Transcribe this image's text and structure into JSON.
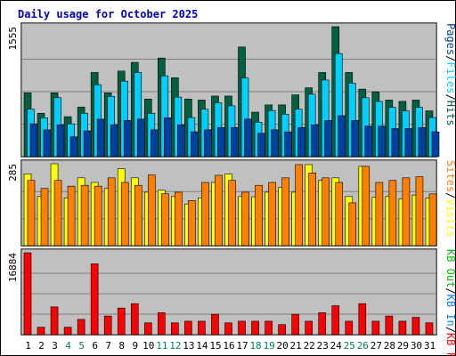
{
  "colors": {
    "hits": "#006040",
    "files": "#00d0ff",
    "pages": "#0040a0",
    "visits": "#ffff00",
    "sites": "#ff8000",
    "kbin": "#0080ff",
    "kbout": "#00c000",
    "kbf": "#ff0000",
    "panel": "#c0c0c0",
    "day_weekday": "#000000",
    "day_weekend": "#00805c",
    "slash": "#000000",
    "frame": "#000000"
  },
  "chart_data": {
    "type": "bar",
    "title": "Daily usage for October 2025",
    "categories": [
      "1",
      "2",
      "3",
      "4",
      "5",
      "6",
      "7",
      "8",
      "9",
      "10",
      "11",
      "12",
      "13",
      "14",
      "15",
      "16",
      "17",
      "18",
      "19",
      "20",
      "21",
      "22",
      "23",
      "24",
      "25",
      "26",
      "27",
      "28",
      "29",
      "30",
      "31"
    ],
    "weekend_days": [
      "4",
      "5",
      "11",
      "12",
      "18",
      "19",
      "25",
      "26"
    ],
    "panels": [
      {
        "id": "traffic",
        "ymax_label": "1555",
        "ymax": 1555,
        "legend": [
          {
            "name": "Hits",
            "color_key": "hits"
          },
          {
            "name": "Files",
            "color_key": "files"
          },
          {
            "name": "Pages",
            "color_key": "pages"
          }
        ],
        "series": [
          {
            "name": "Hits",
            "color_key": "hits",
            "values": [
              764,
              519,
              764,
              478,
              594,
              1007,
              764,
              1024,
              1128,
              689,
              1180,
              944,
              689,
              677,
              725,
              725,
              1312,
              532,
              619,
              619,
              739,
              824,
              1007,
              1555,
              1007,
              808,
              776,
              677,
              661,
              677,
              548
            ]
          },
          {
            "name": "Files",
            "color_key": "files",
            "values": [
              568,
              465,
              705,
              393,
              519,
              861,
              721,
              903,
              1007,
              519,
              967,
              712,
              468,
              568,
              645,
              608,
              941,
              412,
              552,
              508,
              568,
              748,
              917,
              1234,
              880,
              705,
              661,
              591,
              548,
              591,
              468
            ]
          },
          {
            "name": "Pages",
            "color_key": "pages",
            "values": [
              393,
              321,
              381,
              237,
              308,
              449,
              381,
              432,
              449,
              321,
              465,
              381,
              297,
              321,
              349,
              349,
              449,
              279,
              321,
              297,
              349,
              381,
              432,
              490,
              432,
              365,
              365,
              335,
              335,
              349,
              297
            ]
          }
        ]
      },
      {
        "id": "visits",
        "ymax_label": "285",
        "ymax": 285,
        "legend": [
          {
            "name": "Visits",
            "color_key": "visits"
          },
          {
            "name": "Sites",
            "color_key": "sites"
          }
        ],
        "series": [
          {
            "name": "Visits",
            "color_key": "visits",
            "values": [
              250,
              171,
              285,
              166,
              236,
              220,
              199,
              268,
              236,
              186,
              193,
              171,
              145,
              166,
              220,
              249,
              171,
              170,
              186,
              203,
              186,
              282,
              227,
              236,
              171,
              276,
              168,
              171,
              163,
              176,
              166
            ]
          },
          {
            "name": "Sites",
            "color_key": "sites",
            "values": [
              227,
              199,
              227,
              207,
              210,
              207,
              236,
              220,
              210,
              246,
              181,
              186,
              157,
              220,
              245,
              227,
              186,
              210,
              220,
              236,
              282,
              253,
              236,
              220,
              149,
              276,
              220,
              227,
              236,
              240,
              180
            ]
          }
        ]
      },
      {
        "id": "kbytes",
        "ymax_label": "16884",
        "ymax": 16884,
        "legend": [
          {
            "name": "KB F",
            "color_key": "kbf"
          },
          {
            "name": "KB In",
            "color_key": "kbin"
          },
          {
            "name": "KB Out",
            "color_key": "kbout"
          }
        ],
        "series": [
          {
            "name": "KB F",
            "color_key": "kbf",
            "values": [
              16884,
              1535,
              5717,
              1535,
              3142,
              14606,
              3840,
              5478,
              6391,
              2431,
              4525,
              2431,
              2765,
              2765,
              4203,
              2431,
              2765,
              2765,
              2765,
              2069,
              4203,
              2765,
              4525,
              5960,
              2765,
              6391,
              2765,
              3840,
              2765,
              3562,
              2431
            ]
          }
        ]
      }
    ]
  }
}
